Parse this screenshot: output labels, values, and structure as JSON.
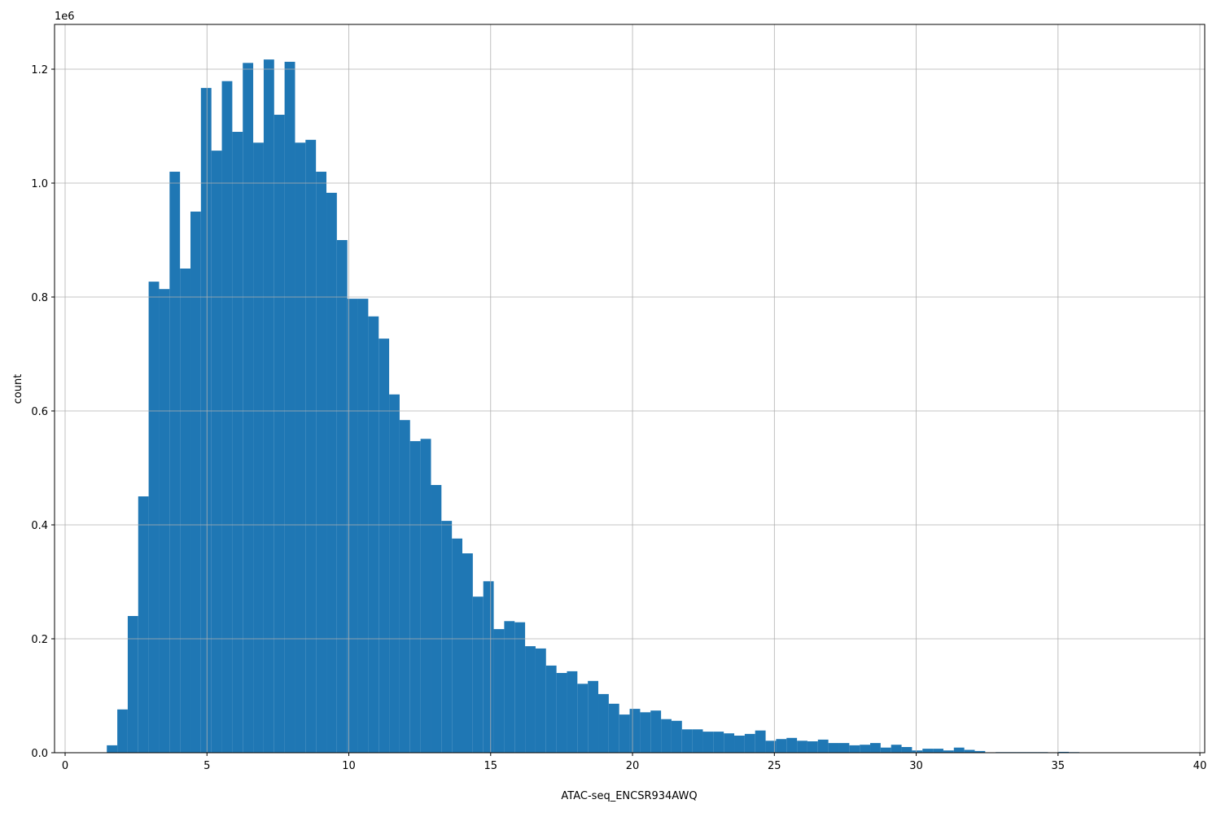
{
  "chart_data": {
    "type": "histogram",
    "x_label": "ATAC-seq_ENCSR934AWQ",
    "y_label": "count",
    "y_offset_label": "1e6",
    "color": "#1f77b4",
    "grid": true,
    "bins": [
      1.47,
      1.839,
      2.207,
      2.576,
      2.944,
      3.313,
      3.682,
      4.05,
      4.419,
      4.787,
      5.156,
      5.525,
      5.893,
      6.262,
      6.63,
      6.999,
      7.368,
      7.736,
      8.105,
      8.473,
      8.842,
      9.211,
      9.579,
      9.948,
      10.316,
      10.685,
      11.054,
      11.422,
      11.791,
      12.159,
      12.528,
      12.897,
      13.265,
      13.634,
      14.002,
      14.371,
      14.74,
      15.108,
      15.477,
      15.845,
      16.214,
      16.583,
      16.951,
      17.32,
      17.688,
      18.057,
      18.426,
      18.794,
      19.163,
      19.531,
      19.9,
      20.269,
      20.637,
      21.006,
      21.374,
      21.743,
      22.112,
      22.48,
      22.849,
      23.217,
      23.586,
      23.955,
      24.323,
      24.692,
      25.06,
      25.429,
      25.798,
      26.166,
      26.535,
      26.903,
      27.272,
      27.641,
      28.009,
      28.378,
      28.746,
      29.115,
      29.484,
      29.852,
      30.221,
      30.589,
      30.958,
      31.327,
      31.695,
      32.064,
      32.432,
      32.801,
      33.17,
      33.538,
      33.907,
      34.275,
      34.644,
      35.013,
      35.381,
      35.75,
      36.118,
      36.487,
      36.856,
      37.224,
      37.593,
      37.961,
      38.33
    ],
    "values": [
      13000,
      76000,
      240000,
      450000,
      827000,
      814000,
      1020000,
      850000,
      950000,
      1167000,
      1057000,
      1179000,
      1090000,
      1211000,
      1071000,
      1217000,
      1120000,
      1213000,
      1071000,
      1076000,
      1020000,
      983000,
      900000,
      797000,
      797000,
      766000,
      727000,
      629000,
      584000,
      547000,
      551000,
      470000,
      407000,
      376000,
      350000,
      274000,
      301000,
      217000,
      231000,
      229000,
      187000,
      183000,
      153000,
      140000,
      143000,
      121000,
      126000,
      103000,
      86000,
      67000,
      77000,
      71000,
      74000,
      59000,
      56000,
      41000,
      41000,
      37000,
      37000,
      34000,
      30000,
      33000,
      39000,
      21000,
      24000,
      26000,
      21000,
      20000,
      23000,
      17000,
      17000,
      13000,
      14000,
      17000,
      9000,
      14000,
      10000,
      4000,
      7000,
      7000,
      4000,
      9000,
      5000,
      3000,
      500,
      1000,
      1000,
      1000,
      1000,
      1000,
      0,
      1500,
      1000,
      0,
      0,
      0,
      0,
      0,
      0,
      100
    ],
    "xlim": [
      -0.373,
      40.17
    ],
    "ylim": [
      0,
      1278600
    ],
    "xticks": [
      0,
      5,
      10,
      15,
      20,
      25,
      30,
      35,
      40
    ],
    "yticks": [
      {
        "value": 0,
        "label": "0.0"
      },
      {
        "value": 200000,
        "label": "0.2"
      },
      {
        "value": 400000,
        "label": "0.4"
      },
      {
        "value": 600000,
        "label": "0.6"
      },
      {
        "value": 800000,
        "label": "0.8"
      },
      {
        "value": 1000000,
        "label": "1.0"
      },
      {
        "value": 1200000,
        "label": "1.2"
      }
    ]
  }
}
